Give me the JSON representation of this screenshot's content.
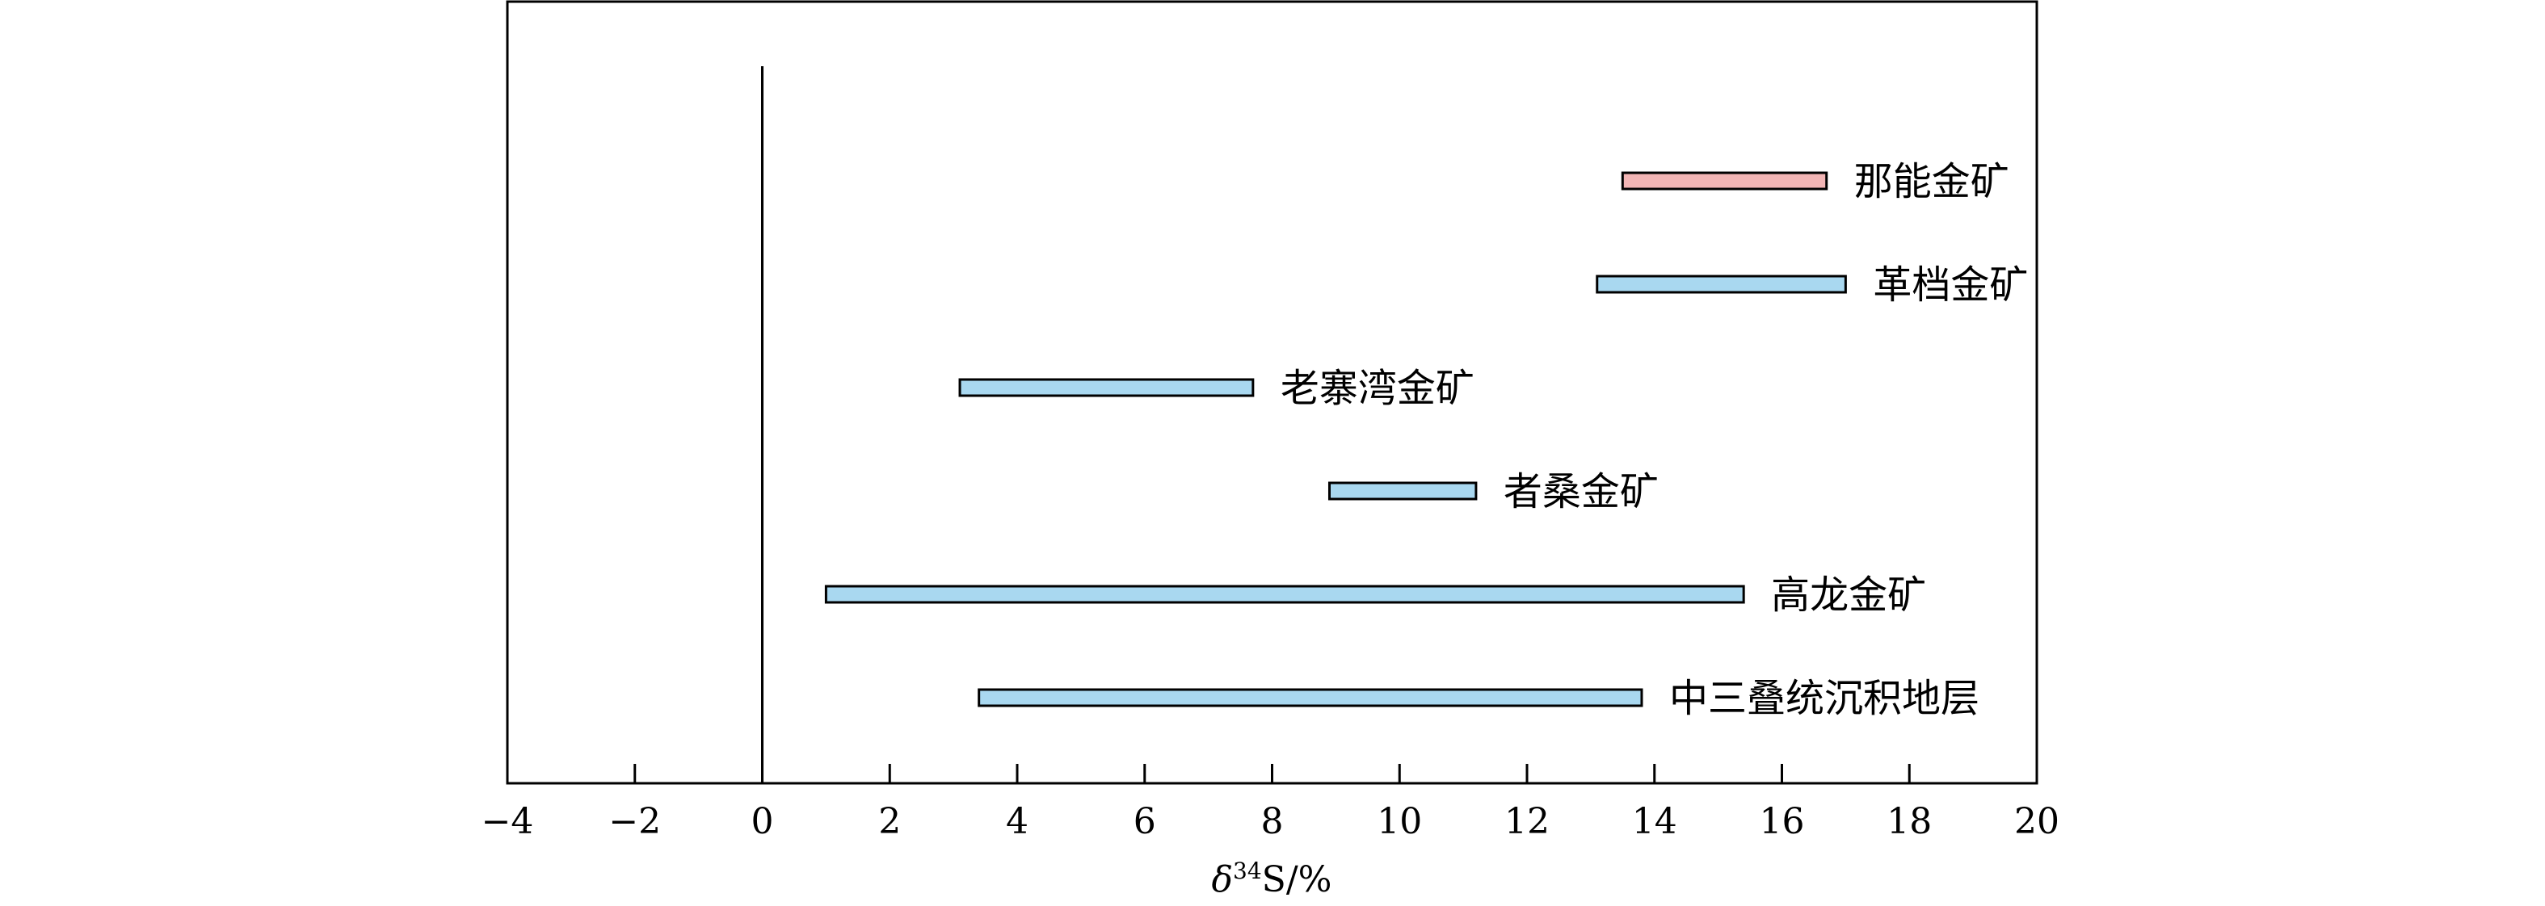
{
  "chart_data": {
    "type": "bar",
    "orientation": "horizontal-range",
    "xlabel": {
      "prefix": "δ",
      "superscript": "34",
      "suffix": "S/%"
    },
    "xlim": [
      -4,
      20
    ],
    "xticks": [
      -4,
      -2,
      0,
      2,
      4,
      6,
      8,
      10,
      12,
      14,
      16,
      18,
      20
    ],
    "reference_line_x": 0,
    "grid": false,
    "legend": "none",
    "ranges": [
      {
        "label": "那能金矿",
        "min": 13.5,
        "max": 16.7,
        "color": "#f2b5b5"
      },
      {
        "label": "革档金矿",
        "min": 13.1,
        "max": 17.0,
        "color": "#a9d8f0"
      },
      {
        "label": "老寨湾金矿",
        "min": 3.1,
        "max": 7.7,
        "color": "#a9d8f0"
      },
      {
        "label": "者桑金矿",
        "min": 8.9,
        "max": 11.2,
        "color": "#a9d8f0"
      },
      {
        "label": "高龙金矿",
        "min": 1.0,
        "max": 15.4,
        "color": "#a9d8f0"
      },
      {
        "label": "中三叠统沉积地层",
        "min": 3.4,
        "max": 13.8,
        "color": "#a9d8f0"
      }
    ]
  }
}
